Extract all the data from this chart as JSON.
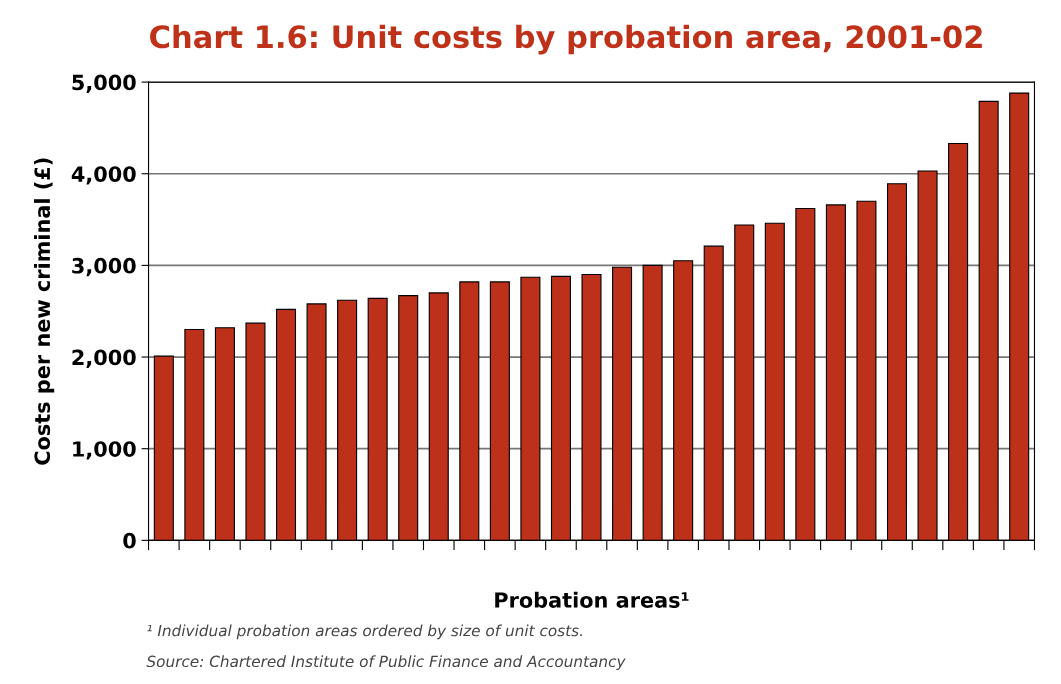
{
  "chart_data": {
    "type": "bar",
    "title": "Chart 1.6: Unit costs by probation area, 2001-02",
    "xlabel": "Probation areas¹",
    "ylabel": "Costs per new criminal (£)",
    "categories": [
      null,
      null,
      null,
      null,
      null,
      null,
      null,
      null,
      null,
      null,
      null,
      null,
      null,
      null,
      null,
      null,
      null,
      null,
      null,
      null,
      null,
      null,
      null,
      null,
      null,
      null,
      null,
      null,
      null
    ],
    "values": [
      2010,
      2300,
      2320,
      2370,
      2520,
      2580,
      2620,
      2640,
      2670,
      2700,
      2820,
      2820,
      2870,
      2880,
      2900,
      2980,
      3000,
      3050,
      3210,
      3440,
      3460,
      3620,
      3660,
      3700,
      3890,
      4030,
      4330,
      4790,
      4880
    ],
    "color": "#bd3019",
    "ylim": [
      0,
      5000
    ],
    "yticks": [
      {
        "value": 0,
        "label": "0"
      },
      {
        "value": 1000,
        "label": "1,000"
      },
      {
        "value": 2000,
        "label": "2,000"
      },
      {
        "value": 3000,
        "label": "3,000"
      },
      {
        "value": 4000,
        "label": "4,000"
      },
      {
        "value": 5000,
        "label": "5,000"
      }
    ],
    "grid": "y",
    "tick_labels": "y",
    "annotations": [
      "¹ Individual probation areas ordered by size of unit costs.",
      "Source: Chartered Institute of Public Finance and Accountancy"
    ]
  }
}
